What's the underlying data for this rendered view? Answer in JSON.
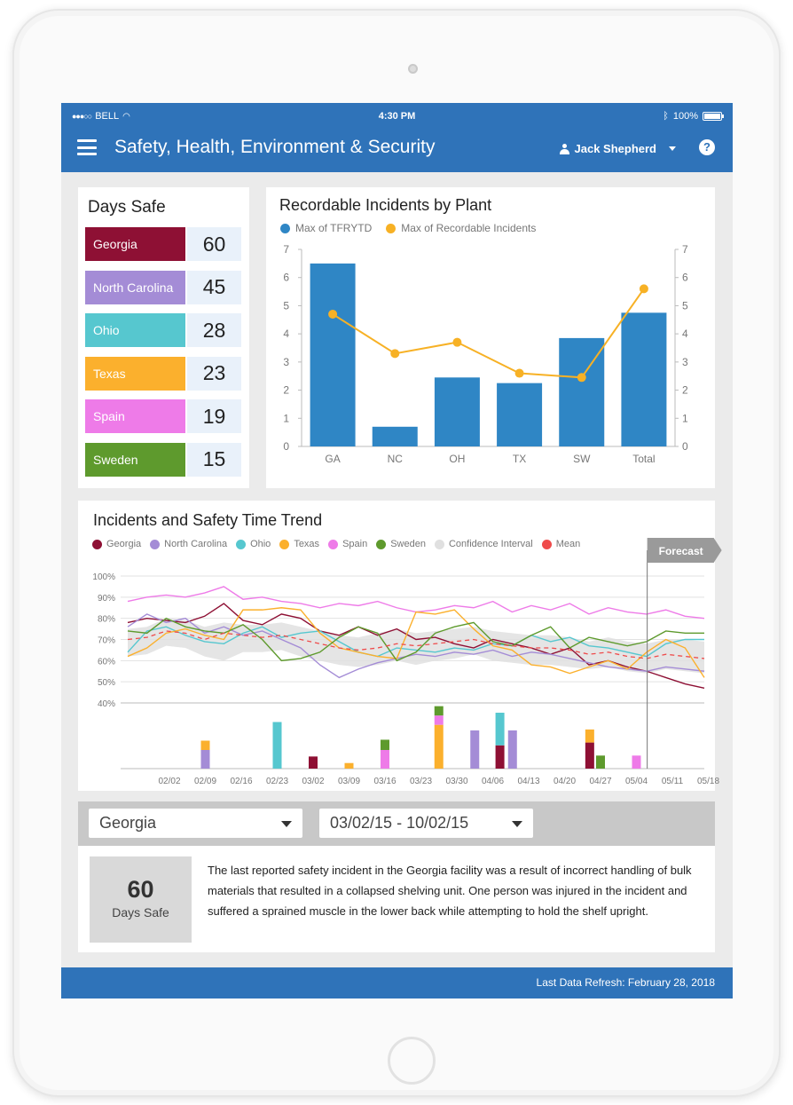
{
  "status_bar": {
    "carrier": "BELL",
    "time": "4:30 PM",
    "battery": "100%"
  },
  "header": {
    "title": "Safety, Health, Environment & Security",
    "user": "Jack Shepherd"
  },
  "days_safe": {
    "title": "Days Safe",
    "items": [
      {
        "name": "Georgia",
        "value": "60",
        "color": "#8e1034"
      },
      {
        "name": "North Carolina",
        "value": "45",
        "color": "#a48cd6"
      },
      {
        "name": "Ohio",
        "value": "28",
        "color": "#56c7cf"
      },
      {
        "name": "Texas",
        "value": "23",
        "color": "#fbb02d"
      },
      {
        "name": "Spain",
        "value": "19",
        "color": "#ee7be8"
      },
      {
        "name": "Sweden",
        "value": "15",
        "color": "#5e9a2d"
      }
    ]
  },
  "chart_data": [
    {
      "type": "bar",
      "title": "Recordable Incidents by Plant",
      "categories": [
        "GA",
        "NC",
        "OH",
        "TX",
        "SW",
        "Total"
      ],
      "series": [
        {
          "name": "Max of TFRYTD",
          "kind": "bar",
          "color": "#2f86c5",
          "values": [
            6.5,
            0.7,
            2.45,
            2.25,
            3.85,
            4.75
          ]
        },
        {
          "name": "Max of Recordable Incidents",
          "kind": "line",
          "color": "#f7b125",
          "values": [
            4.7,
            3.3,
            3.7,
            2.6,
            2.45,
            5.6
          ]
        }
      ],
      "y_ticks": [
        "0",
        "1",
        "2",
        "3",
        "4",
        "5",
        "6",
        "7"
      ],
      "ylim": [
        0,
        7
      ]
    },
    {
      "type": "line",
      "title": "Incidents and Safety Time Trend",
      "x_labels": [
        "02/02",
        "02/09",
        "02/16",
        "02/23",
        "03/02",
        "03/09",
        "03/16",
        "03/23",
        "03/30",
        "04/06",
        "04/13",
        "04/20",
        "04/27",
        "05/04",
        "05/11",
        "05/18"
      ],
      "y_ticks": [
        "40%",
        "50%",
        "60%",
        "70%",
        "80%",
        "90%",
        "100%"
      ],
      "ylim": [
        40,
        100
      ],
      "forecast_label": "Forecast",
      "forecast_at_week": 13.3,
      "legend": [
        {
          "name": "Georgia",
          "color": "#8e1034"
        },
        {
          "name": "North Carolina",
          "color": "#a48cd6"
        },
        {
          "name": "Ohio",
          "color": "#56c7cf"
        },
        {
          "name": "Texas",
          "color": "#fbb02d"
        },
        {
          "name": "Spain",
          "color": "#ee7be8"
        },
        {
          "name": "Sweden",
          "color": "#5e9a2d"
        },
        {
          "name": "Confidence Interval",
          "color": "#e0e0e0"
        },
        {
          "name": "Mean",
          "color": "#ef4b4b"
        }
      ],
      "lines": {
        "Spain": [
          88,
          90,
          91,
          90,
          92,
          95,
          89,
          90,
          88,
          87,
          85,
          87,
          86,
          88,
          85,
          83,
          84,
          86,
          85,
          88,
          83,
          86,
          84,
          87,
          82,
          85,
          83,
          82,
          84,
          81,
          80
        ],
        "Georgia": [
          78,
          80,
          79,
          78,
          81,
          87,
          79,
          77,
          82,
          80,
          74,
          72,
          76,
          72,
          75,
          70,
          71,
          68,
          66,
          70,
          68,
          66,
          63,
          66,
          58,
          60,
          57,
          55,
          52,
          49,
          47
        ],
        "North Carolina": [
          76,
          82,
          78,
          80,
          73,
          76,
          72,
          74,
          70,
          66,
          58,
          52,
          56,
          59,
          61,
          63,
          62,
          64,
          63,
          65,
          62,
          64,
          63,
          61,
          59,
          57,
          56,
          55,
          57,
          56,
          55
        ],
        "Ohio": [
          64,
          74,
          76,
          72,
          69,
          68,
          73,
          76,
          71,
          73,
          74,
          69,
          64,
          62,
          66,
          65,
          64,
          66,
          65,
          68,
          67,
          72,
          69,
          71,
          67,
          66,
          64,
          62,
          68,
          70,
          70
        ],
        "Texas": [
          62,
          66,
          73,
          75,
          72,
          70,
          84,
          84,
          85,
          84,
          73,
          66,
          64,
          62,
          61,
          83,
          82,
          84,
          75,
          67,
          65,
          58,
          57,
          54,
          57,
          60,
          56,
          64,
          70,
          66,
          52
        ],
        "Sweden": [
          74,
          73,
          80,
          76,
          74,
          73,
          77,
          70,
          60,
          61,
          64,
          71,
          76,
          73,
          60,
          64,
          73,
          76,
          78,
          69,
          67,
          72,
          76,
          66,
          71,
          69,
          67,
          69,
          74,
          73,
          73
        ],
        "Mean": [
          70,
          71,
          74,
          73,
          70,
          73,
          72,
          71,
          72,
          70,
          68,
          66,
          65,
          66,
          68,
          67,
          68,
          69,
          70,
          68,
          67,
          66,
          66,
          65,
          63,
          64,
          62,
          61,
          63,
          62,
          61
        ],
        "CI_upper": [
          75,
          76,
          80,
          79,
          76,
          78,
          77,
          77,
          78,
          76,
          74,
          72,
          71,
          73,
          75,
          73,
          74,
          75,
          76,
          74,
          73,
          72,
          72,
          71,
          69,
          71,
          69,
          68,
          70,
          70,
          69
        ],
        "CI_lower": [
          62,
          63,
          67,
          66,
          62,
          60,
          64,
          64,
          65,
          62,
          60,
          58,
          57,
          58,
          60,
          58,
          60,
          61,
          63,
          60,
          59,
          58,
          58,
          57,
          56,
          57,
          55,
          54,
          56,
          55,
          54
        ]
      },
      "incident_bars": [
        {
          "week": 1,
          "segments": [
            {
              "name": "North Carolina",
              "value": 2
            },
            {
              "name": "Texas",
              "value": 1
            }
          ]
        },
        {
          "week": 3,
          "segments": [
            {
              "name": "Ohio",
              "value": 5
            }
          ]
        },
        {
          "week": 4,
          "segments": [
            {
              "name": "Georgia",
              "value": 1.3
            }
          ]
        },
        {
          "week": 5,
          "segments": [
            {
              "name": "Texas",
              "value": 0.6
            }
          ]
        },
        {
          "week": 6,
          "segments": [
            {
              "name": "Spain",
              "value": 2
            },
            {
              "name": "Sweden",
              "value": 1.1
            }
          ]
        },
        {
          "week": 7.5,
          "segments": [
            {
              "name": "Texas",
              "value": 4.7
            },
            {
              "name": "Spain",
              "value": 1
            },
            {
              "name": "Sweden",
              "value": 1
            }
          ]
        },
        {
          "week": 8.5,
          "segments": [
            {
              "name": "North Carolina",
              "value": 4.1
            }
          ]
        },
        {
          "week": 9.2,
          "segments": [
            {
              "name": "Georgia",
              "value": 2.5
            },
            {
              "name": "Ohio",
              "value": 3.5
            }
          ]
        },
        {
          "week": 9.55,
          "segments": [
            {
              "name": "North Carolina",
              "value": 4.1
            }
          ]
        },
        {
          "week": 11.7,
          "segments": [
            {
              "name": "Georgia",
              "value": 2.8
            },
            {
              "name": "Texas",
              "value": 1.4
            }
          ]
        },
        {
          "week": 12,
          "segments": [
            {
              "name": "Sweden",
              "value": 1.4
            }
          ]
        },
        {
          "week": 13,
          "segments": [
            {
              "name": "Spain",
              "value": 1.4
            }
          ]
        }
      ]
    }
  ],
  "filters": {
    "plant": "Georgia",
    "date_range": "03/02/15 - 10/02/15"
  },
  "detail": {
    "days_value": "60",
    "days_label": "Days Safe",
    "text": "The last reported safety incident in the Georgia facility was a result of incorrect handling of bulk materials that resulted in a collapsed shelving unit. One person was injured in the incident and suffered a sprained muscle in the lower back while attempting to hold the shelf upright."
  },
  "footer": {
    "last_refresh": "Last Data Refresh: February 28, 2018"
  }
}
